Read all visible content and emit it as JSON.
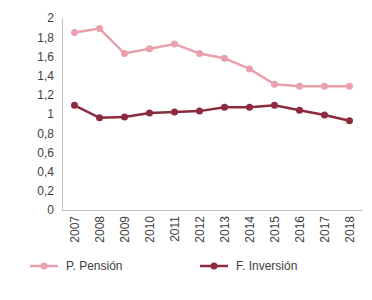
{
  "chart_data": {
    "type": "line",
    "categories": [
      "2007",
      "2008",
      "2009",
      "2010",
      "2011",
      "2012",
      "2013",
      "2014",
      "2015",
      "2016",
      "2017",
      "2018"
    ],
    "series": [
      {
        "name": "P. Pensión",
        "color": "#e9a1ad",
        "marker": "circle",
        "values": [
          1.85,
          1.89,
          1.63,
          1.68,
          1.73,
          1.63,
          1.58,
          1.47,
          1.31,
          1.29,
          1.29,
          1.29
        ]
      },
      {
        "name": "F. Inversión",
        "color": "#8c2a3e",
        "marker": "circle",
        "values": [
          1.09,
          0.96,
          0.97,
          1.01,
          1.02,
          1.03,
          1.07,
          1.07,
          1.09,
          1.04,
          0.99,
          0.93
        ]
      }
    ],
    "ylim": [
      0,
      2
    ],
    "yticks": [
      0,
      {
        "value": 0.2,
        "label": "0,2"
      },
      {
        "value": 0.4,
        "label": "0,4"
      },
      {
        "value": 0.6,
        "label": "0,6"
      },
      {
        "value": 0.8,
        "label": "0,8"
      },
      1,
      {
        "value": 1.2,
        "label": "1,2"
      },
      {
        "value": 1.4,
        "label": "1,4"
      },
      {
        "value": 1.6,
        "label": "1,6"
      },
      {
        "value": 1.8,
        "label": "1,8"
      },
      2
    ],
    "grid": false,
    "legend": "bottom"
  }
}
